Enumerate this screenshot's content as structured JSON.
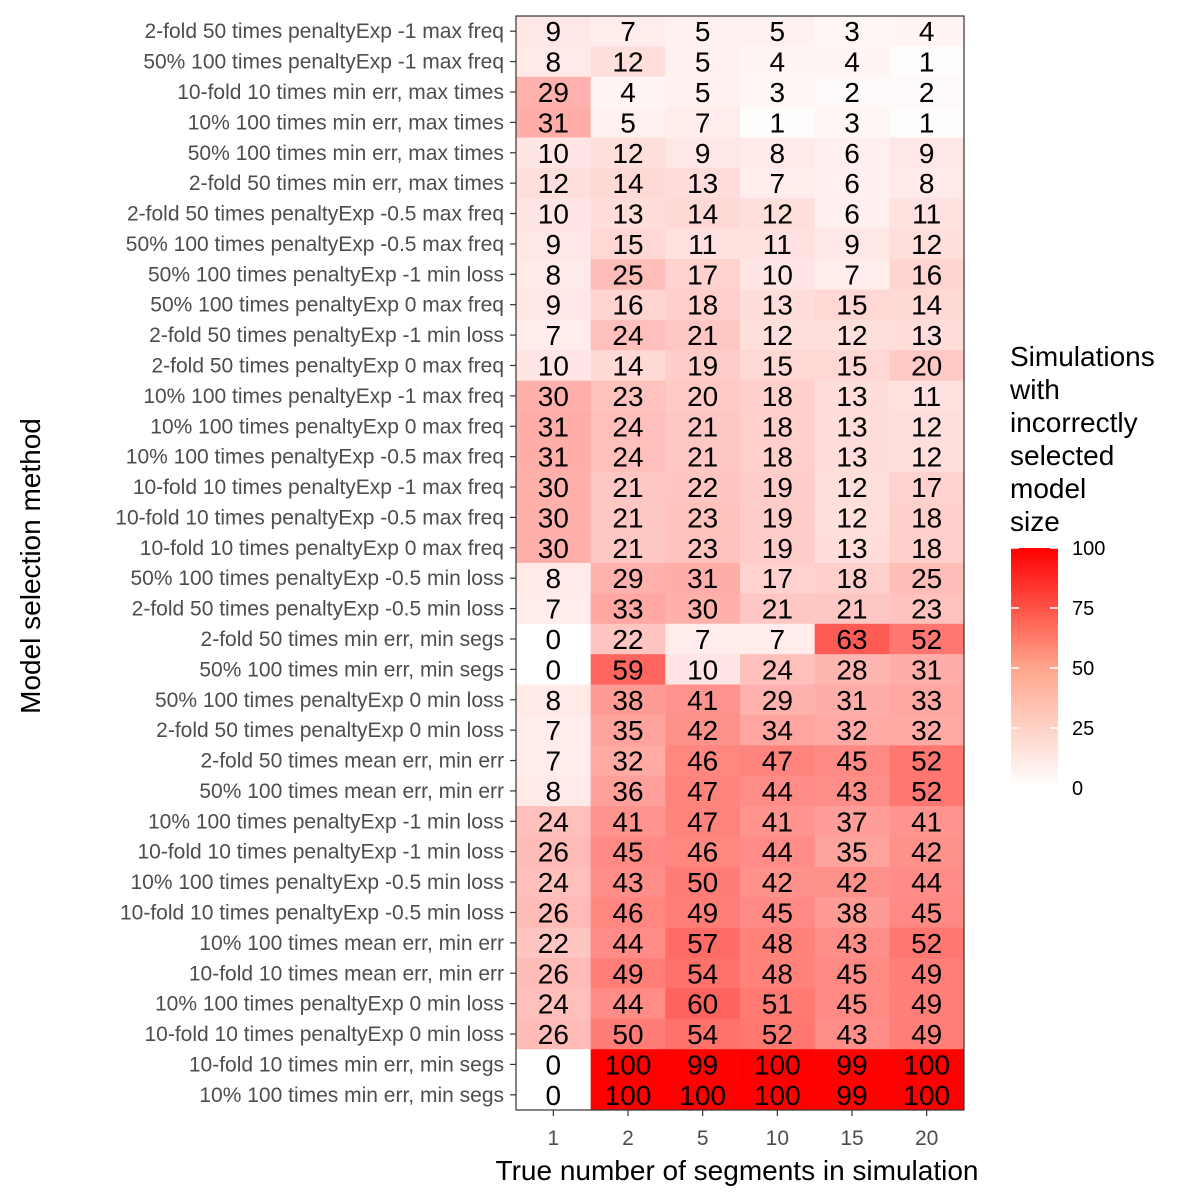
{
  "chart_data": {
    "type": "heatmap",
    "xlabel": "True number of segments in simulation",
    "ylabel": "Model selection method",
    "x_categories": [
      "1",
      "2",
      "5",
      "10",
      "15",
      "20"
    ],
    "y_categories": [
      "2-fold 50 times penaltyExp -1 max freq",
      "50% 100 times penaltyExp -1 max freq",
      "10-fold 10 times min err, max times",
      "10% 100 times min err, max times",
      "50% 100 times min err, max times",
      "2-fold 50 times min err, max times",
      "2-fold 50 times penaltyExp -0.5 max freq",
      "50% 100 times penaltyExp -0.5 max freq",
      "50% 100 times penaltyExp -1 min loss",
      "50% 100 times penaltyExp 0 max freq",
      "2-fold 50 times penaltyExp -1 min loss",
      "2-fold 50 times penaltyExp 0 max freq",
      "10% 100 times penaltyExp -1 max freq",
      "10% 100 times penaltyExp 0 max freq",
      "10% 100 times penaltyExp -0.5 max freq",
      "10-fold 10 times penaltyExp -1 max freq",
      "10-fold 10 times penaltyExp -0.5 max freq",
      "10-fold 10 times penaltyExp 0 max freq",
      "50% 100 times penaltyExp -0.5 min loss",
      "2-fold 50 times penaltyExp -0.5 min loss",
      "2-fold 50 times min err, min segs",
      "50% 100 times min err, min segs",
      "50% 100 times penaltyExp 0 min loss",
      "2-fold 50 times penaltyExp 0 min loss",
      "2-fold 50 times mean err, min err",
      "50% 100 times mean err, min err",
      "10% 100 times penaltyExp -1 min loss",
      "10-fold 10 times penaltyExp -1 min loss",
      "10% 100 times penaltyExp -0.5 min loss",
      "10-fold 10 times penaltyExp -0.5 min loss",
      "10% 100 times mean err, min err",
      "10-fold 10 times mean err, min err",
      "10% 100 times penaltyExp 0 min loss",
      "10-fold 10 times penaltyExp 0 min loss",
      "10-fold 10 times min err, min segs",
      "10% 100 times min err, min segs"
    ],
    "values": [
      [
        9,
        7,
        5,
        5,
        3,
        4
      ],
      [
        8,
        12,
        5,
        4,
        4,
        1
      ],
      [
        29,
        4,
        5,
        3,
        2,
        2
      ],
      [
        31,
        5,
        7,
        1,
        3,
        1
      ],
      [
        10,
        12,
        9,
        8,
        6,
        9
      ],
      [
        12,
        14,
        13,
        7,
        6,
        8
      ],
      [
        10,
        13,
        14,
        12,
        6,
        11
      ],
      [
        9,
        15,
        11,
        11,
        9,
        12
      ],
      [
        8,
        25,
        17,
        10,
        7,
        16
      ],
      [
        9,
        16,
        18,
        13,
        15,
        14
      ],
      [
        7,
        24,
        21,
        12,
        12,
        13
      ],
      [
        10,
        14,
        19,
        15,
        15,
        20
      ],
      [
        30,
        23,
        20,
        18,
        13,
        11
      ],
      [
        31,
        24,
        21,
        18,
        13,
        12
      ],
      [
        31,
        24,
        21,
        18,
        13,
        12
      ],
      [
        30,
        21,
        22,
        19,
        12,
        17
      ],
      [
        30,
        21,
        23,
        19,
        12,
        18
      ],
      [
        30,
        21,
        23,
        19,
        13,
        18
      ],
      [
        8,
        29,
        31,
        17,
        18,
        25
      ],
      [
        7,
        33,
        30,
        21,
        21,
        23
      ],
      [
        0,
        22,
        7,
        7,
        63,
        52
      ],
      [
        0,
        59,
        10,
        24,
        28,
        31
      ],
      [
        8,
        38,
        41,
        29,
        31,
        33
      ],
      [
        7,
        35,
        42,
        34,
        32,
        32
      ],
      [
        7,
        32,
        46,
        47,
        45,
        52
      ],
      [
        8,
        36,
        47,
        44,
        43,
        52
      ],
      [
        24,
        41,
        47,
        41,
        37,
        41
      ],
      [
        26,
        45,
        46,
        44,
        35,
        42
      ],
      [
        24,
        43,
        50,
        42,
        42,
        44
      ],
      [
        26,
        46,
        49,
        45,
        38,
        45
      ],
      [
        22,
        44,
        57,
        48,
        43,
        52
      ],
      [
        26,
        49,
        54,
        48,
        45,
        49
      ],
      [
        24,
        44,
        60,
        51,
        45,
        49
      ],
      [
        26,
        50,
        54,
        52,
        43,
        49
      ],
      [
        0,
        100,
        99,
        100,
        99,
        100
      ],
      [
        0,
        100,
        100,
        100,
        99,
        100
      ]
    ],
    "color_scale": {
      "low": "#ffffff",
      "high": "#ff0000",
      "min": 0,
      "max": 100
    },
    "legend": {
      "title_lines": [
        "Simulations",
        "with",
        "incorrectly",
        "selected",
        "model",
        "size"
      ],
      "ticks": [
        "100",
        "75",
        "50",
        "25",
        "0"
      ],
      "position": "right"
    },
    "grid": false
  }
}
